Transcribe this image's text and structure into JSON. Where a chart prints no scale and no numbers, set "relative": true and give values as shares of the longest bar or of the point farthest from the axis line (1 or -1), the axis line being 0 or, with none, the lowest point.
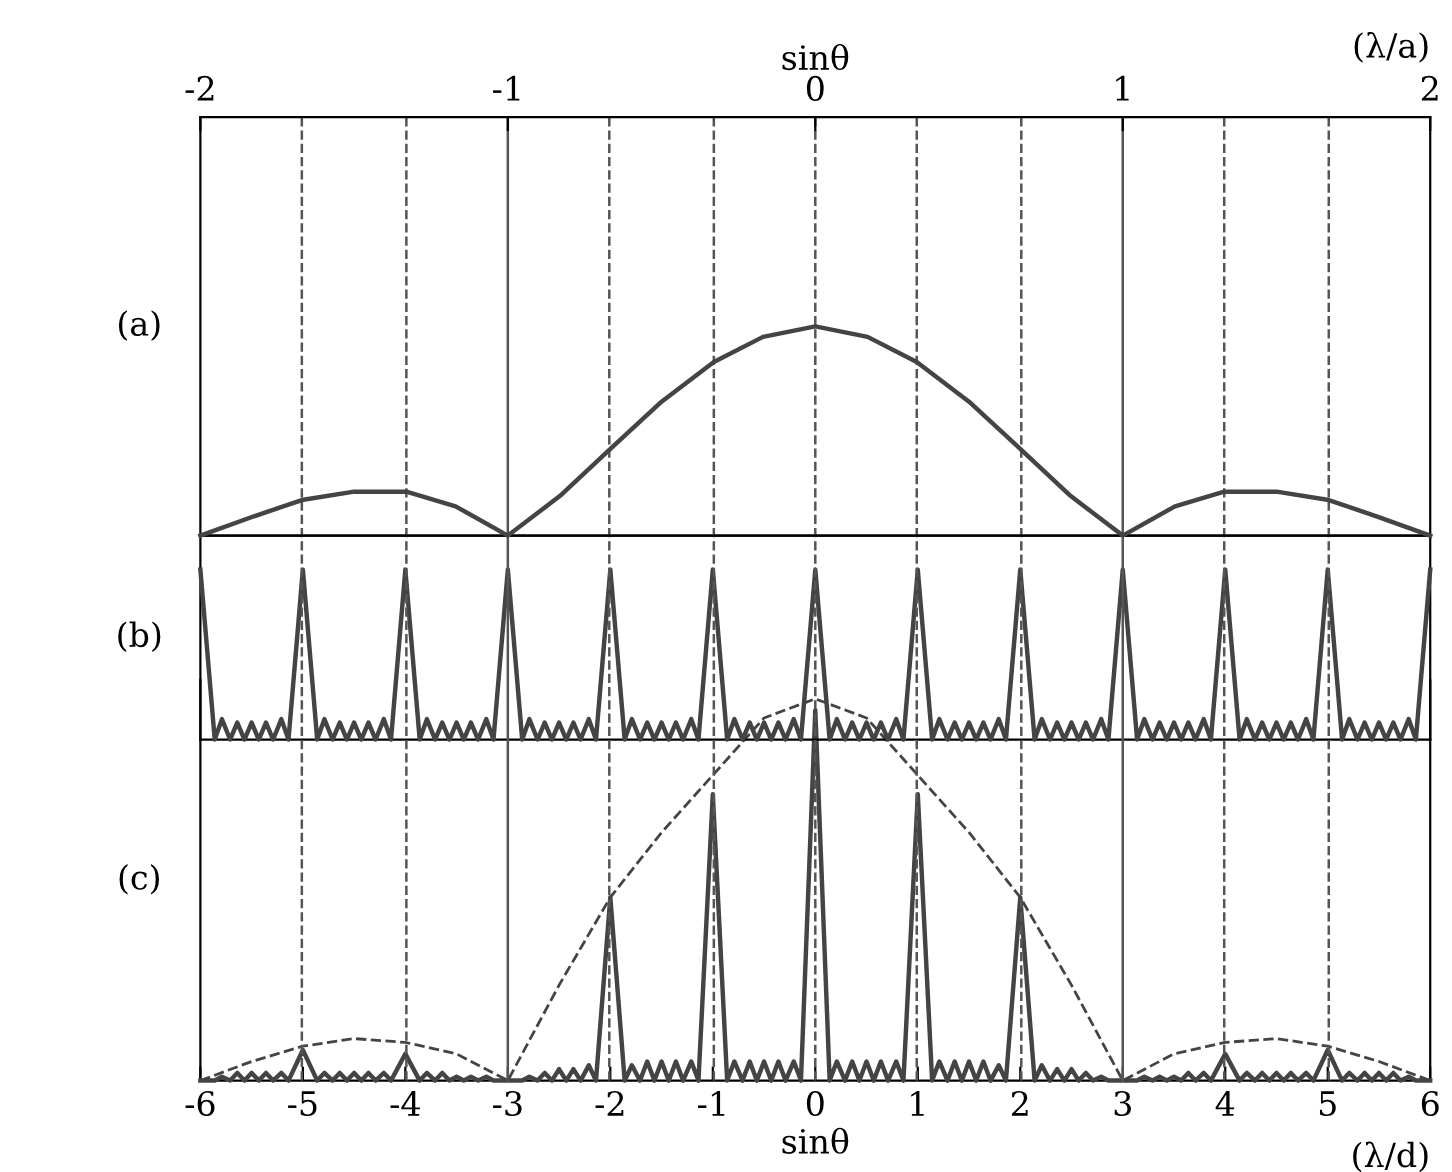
{
  "chart_data": [
    {
      "type": "line",
      "relative": true,
      "xlabel": "sinθ",
      "ylabel": "(a)",
      "xlim": [
        -2,
        2
      ],
      "xticks": [
        -2,
        -1,
        0,
        1,
        2
      ],
      "tick_labels": "x",
      "annotations": [
        "(λ/a)"
      ],
      "marker": "none",
      "x": [
        -2,
        -1.83,
        -1.67,
        -1.5,
        -1.33,
        -1.17,
        -1,
        -0.83,
        -0.67,
        -0.5,
        -0.33,
        -0.17,
        0,
        0.17,
        0.33,
        0.5,
        0.67,
        0.83,
        1,
        1.17,
        1.33,
        1.5,
        1.67,
        1.83,
        2
      ],
      "series": [
        {
          "color": "#444444",
          "line_style": "solid",
          "values": [
            0,
            0.09,
            0.17,
            0.21,
            0.21,
            0.14,
            0,
            0.19,
            0.41,
            0.64,
            0.83,
            0.95,
            1,
            0.95,
            0.83,
            0.64,
            0.41,
            0.19,
            0,
            0.14,
            0.21,
            0.21,
            0.17,
            0.09,
            0
          ]
        }
      ],
      "ref_lines": [
        {
          "axis": "x",
          "value": -1.67,
          "line_style": "dashed",
          "color": "#555555"
        },
        {
          "axis": "x",
          "value": -1.33,
          "line_style": "dashed",
          "color": "#555555"
        },
        {
          "axis": "x",
          "value": -1,
          "line_style": "solid",
          "color": "#555555"
        },
        {
          "axis": "x",
          "value": -0.67,
          "line_style": "dashed",
          "color": "#555555"
        },
        {
          "axis": "x",
          "value": -0.33,
          "line_style": "dashed",
          "color": "#555555"
        },
        {
          "axis": "x",
          "value": 0,
          "line_style": "dashed",
          "color": "#555555"
        },
        {
          "axis": "x",
          "value": 0.33,
          "line_style": "dashed",
          "color": "#555555"
        },
        {
          "axis": "x",
          "value": 0.67,
          "line_style": "dashed",
          "color": "#555555"
        },
        {
          "axis": "x",
          "value": 1,
          "line_style": "solid",
          "color": "#555555"
        },
        {
          "axis": "x",
          "value": 1.33,
          "line_style": "dashed",
          "color": "#555555"
        },
        {
          "axis": "x",
          "value": 1.67,
          "line_style": "dashed",
          "color": "#555555"
        }
      ]
    },
    {
      "type": "line",
      "relative": true,
      "ylabel": "(b)",
      "xlim": [
        -6,
        6
      ],
      "tick_labels": false,
      "marker": "none",
      "x": [
        -6,
        -5.86,
        -5.79,
        -5.71,
        -5.64,
        -5.57,
        -5.5,
        -5.43,
        -5.36,
        -5.29,
        -5.21,
        -5.14,
        -5,
        -4.86,
        -4.79,
        -4.71,
        -4.64,
        -4.57,
        -4.5,
        -4.43,
        -4.36,
        -4.29,
        -4.21,
        -4.14,
        -4,
        -3.86,
        -3.79,
        -3.71,
        -3.64,
        -3.57,
        -3.5,
        -3.43,
        -3.36,
        -3.29,
        -3.21,
        -3.14,
        -3,
        -2.86,
        -2.79,
        -2.71,
        -2.64,
        -2.57,
        -2.5,
        -2.43,
        -2.36,
        -2.29,
        -2.21,
        -2.14,
        -2,
        -1.86,
        -1.79,
        -1.71,
        -1.64,
        -1.57,
        -1.5,
        -1.43,
        -1.36,
        -1.29,
        -1.21,
        -1.14,
        -1,
        -0.86,
        -0.79,
        -0.71,
        -0.64,
        -0.57,
        -0.5,
        -0.43,
        -0.36,
        -0.29,
        -0.21,
        -0.14,
        0,
        0.14,
        0.21,
        0.29,
        0.36,
        0.43,
        0.5,
        0.57,
        0.64,
        0.71,
        0.79,
        0.86,
        1,
        1.14,
        1.21,
        1.29,
        1.36,
        1.43,
        1.5,
        1.57,
        1.64,
        1.71,
        1.79,
        1.86,
        2,
        2.14,
        2.21,
        2.29,
        2.36,
        2.43,
        2.5,
        2.57,
        2.64,
        2.71,
        2.79,
        2.86,
        3,
        3.14,
        3.21,
        3.29,
        3.36,
        3.43,
        3.5,
        3.57,
        3.64,
        3.71,
        3.79,
        3.86,
        4,
        4.14,
        4.21,
        4.29,
        4.36,
        4.43,
        4.5,
        4.57,
        4.64,
        4.71,
        4.79,
        4.86,
        5,
        5.14,
        5.21,
        5.29,
        5.36,
        5.43,
        5.5,
        5.57,
        5.64,
        5.71,
        5.79,
        5.86,
        6
      ],
      "series": [
        {
          "color": "#444444",
          "line_style": "solid",
          "values": [
            1,
            0,
            0.12,
            0,
            0.1,
            0,
            0.1,
            0,
            0.1,
            0,
            0.12,
            0,
            1,
            0,
            0.12,
            0,
            0.1,
            0,
            0.1,
            0,
            0.1,
            0,
            0.12,
            0,
            1,
            0,
            0.12,
            0,
            0.1,
            0,
            0.1,
            0,
            0.1,
            0,
            0.12,
            0,
            1,
            0,
            0.12,
            0,
            0.1,
            0,
            0.1,
            0,
            0.1,
            0,
            0.12,
            0,
            1,
            0,
            0.12,
            0,
            0.1,
            0,
            0.1,
            0,
            0.1,
            0,
            0.12,
            0,
            1,
            0,
            0.12,
            0,
            0.1,
            0,
            0.1,
            0,
            0.1,
            0,
            0.12,
            0,
            1,
            0,
            0.12,
            0,
            0.1,
            0,
            0.1,
            0,
            0.1,
            0,
            0.12,
            0,
            1,
            0,
            0.12,
            0,
            0.1,
            0,
            0.1,
            0,
            0.1,
            0,
            0.12,
            0,
            1,
            0,
            0.12,
            0,
            0.1,
            0,
            0.1,
            0,
            0.1,
            0,
            0.12,
            0,
            1,
            0,
            0.12,
            0,
            0.1,
            0,
            0.1,
            0,
            0.1,
            0,
            0.12,
            0,
            1,
            0,
            0.12,
            0,
            0.1,
            0,
            0.1,
            0,
            0.1,
            0,
            0.12,
            0,
            1,
            0,
            0.12,
            0,
            0.1,
            0,
            0.1,
            0,
            0.1,
            0,
            0.12,
            0,
            1
          ]
        }
      ]
    },
    {
      "type": "line",
      "relative": true,
      "xlabel": "sinθ",
      "ylabel": "(c)",
      "xlim": [
        -6,
        6
      ],
      "xticks": [
        -6,
        -5,
        -4,
        -3,
        -2,
        -1,
        0,
        1,
        2,
        3,
        4,
        5,
        6
      ],
      "tick_labels": "x",
      "annotations": [
        "(λ/d)"
      ],
      "marker": "none",
      "x": [
        -6,
        -5.86,
        -5.79,
        -5.71,
        -5.64,
        -5.57,
        -5.5,
        -5.43,
        -5.36,
        -5.29,
        -5.21,
        -5.14,
        -5,
        -4.86,
        -4.79,
        -4.71,
        -4.64,
        -4.57,
        -4.5,
        -4.43,
        -4.36,
        -4.29,
        -4.21,
        -4.14,
        -4,
        -3.86,
        -3.79,
        -3.71,
        -3.64,
        -3.57,
        -3.5,
        -3.43,
        -3.36,
        -3.29,
        -3.21,
        -3.14,
        -3,
        -2.86,
        -2.79,
        -2.71,
        -2.64,
        -2.57,
        -2.5,
        -2.43,
        -2.36,
        -2.29,
        -2.21,
        -2.14,
        -2,
        -1.86,
        -1.79,
        -1.71,
        -1.64,
        -1.57,
        -1.5,
        -1.43,
        -1.36,
        -1.29,
        -1.21,
        -1.14,
        -1,
        -0.86,
        -0.79,
        -0.71,
        -0.64,
        -0.57,
        -0.5,
        -0.43,
        -0.36,
        -0.29,
        -0.21,
        -0.14,
        0,
        0.14,
        0.21,
        0.29,
        0.36,
        0.43,
        0.5,
        0.57,
        0.64,
        0.71,
        0.79,
        0.86,
        1,
        1.14,
        1.21,
        1.29,
        1.36,
        1.43,
        1.5,
        1.57,
        1.64,
        1.71,
        1.79,
        1.86,
        2,
        2.14,
        2.21,
        2.29,
        2.36,
        2.43,
        2.5,
        2.57,
        2.64,
        2.71,
        2.79,
        2.86,
        3,
        3.14,
        3.21,
        3.29,
        3.36,
        3.43,
        3.5,
        3.57,
        3.64,
        3.71,
        3.79,
        3.86,
        4,
        4.14,
        4.21,
        4.29,
        4.36,
        4.43,
        4.5,
        4.57,
        4.64,
        4.71,
        4.79,
        4.86,
        5,
        5.14,
        5.21,
        5.29,
        5.36,
        5.43,
        5.5,
        5.57,
        5.64,
        5.71,
        5.79,
        5.86,
        6
      ],
      "series": [
        {
          "color": "#444444",
          "line_style": "solid",
          "values": [
            0,
            0,
            0.01,
            0,
            0.02,
            0,
            0.02,
            0,
            0.02,
            0,
            0.02,
            0,
            0.08,
            0,
            0.02,
            0,
            0.02,
            0,
            0.02,
            0,
            0.02,
            0,
            0.02,
            0,
            0.07,
            0,
            0.02,
            0,
            0.02,
            0,
            0.01,
            0,
            0.01,
            0,
            0.01,
            0,
            0,
            0,
            0.01,
            0,
            0.02,
            0,
            0.03,
            0,
            0.03,
            0,
            0.04,
            0,
            0.48,
            0,
            0.04,
            0,
            0.05,
            0,
            0.05,
            0,
            0.05,
            0,
            0.05,
            0,
            0.75,
            0,
            0.05,
            0,
            0.05,
            0,
            0.05,
            0,
            0.05,
            0,
            0.05,
            0,
            0.97,
            0,
            0.05,
            0,
            0.05,
            0,
            0.05,
            0,
            0.05,
            0,
            0.05,
            0,
            0.75,
            0,
            0.05,
            0,
            0.05,
            0,
            0.05,
            0,
            0.05,
            0,
            0.04,
            0,
            0.48,
            0,
            0.04,
            0,
            0.03,
            0,
            0.03,
            0,
            0.02,
            0,
            0.01,
            0,
            0,
            0,
            0.01,
            0,
            0.01,
            0,
            0.01,
            0,
            0.02,
            0,
            0.02,
            0,
            0.07,
            0,
            0.02,
            0,
            0.02,
            0,
            0.02,
            0,
            0.02,
            0,
            0.02,
            0,
            0.08,
            0,
            0.02,
            0,
            0.02,
            0,
            0.02,
            0,
            0.02,
            0,
            0.01,
            0,
            0
          ]
        },
        {
          "color": "#444444",
          "line_style": "dashed",
          "type": "line",
          "x": [
            -6,
            -5.5,
            -5,
            -4.5,
            -4,
            -3.5,
            -3,
            -2.5,
            -2,
            -1.5,
            -1,
            -0.5,
            0,
            0.5,
            1,
            1.5,
            2,
            2.5,
            3,
            3.5,
            4,
            4.5,
            5,
            5.5,
            6
          ],
          "values": [
            0,
            0.05,
            0.09,
            0.11,
            0.1,
            0.07,
            0,
            0.25,
            0.48,
            0.65,
            0.8,
            0.95,
            1,
            0.95,
            0.8,
            0.65,
            0.48,
            0.25,
            0,
            0.07,
            0.1,
            0.11,
            0.09,
            0.05,
            0
          ]
        }
      ]
    }
  ]
}
